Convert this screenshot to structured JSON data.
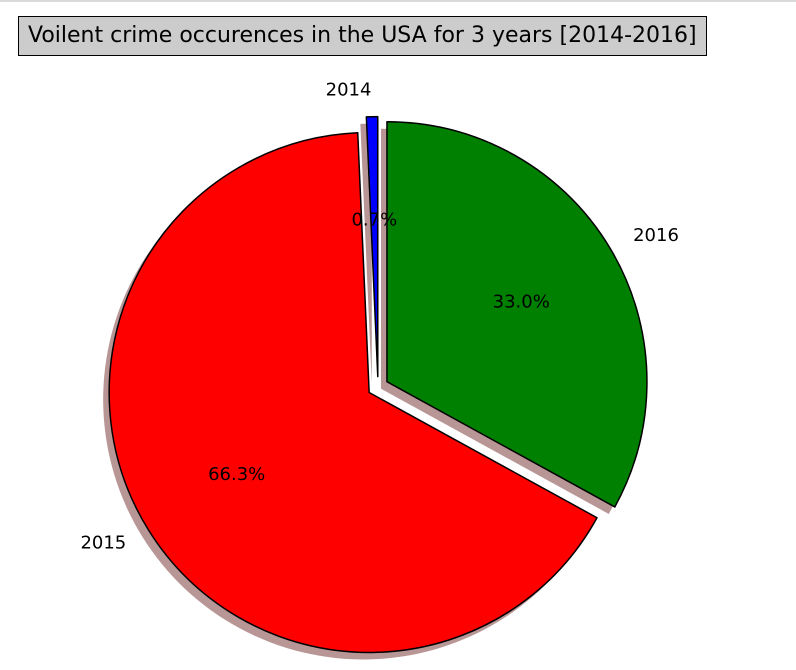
{
  "chart_data": {
    "type": "pie",
    "title": "Voilent crime occurences in the USA for 3 years [2014-2016]",
    "categories": [
      "2014",
      "2015",
      "2016"
    ],
    "values": [
      0.7,
      66.3,
      33.0
    ],
    "autopct_labels": [
      "0.7%",
      "66.3%",
      "33.0%"
    ],
    "colors": [
      "#0000ff",
      "#ff0000",
      "#008000"
    ],
    "explode": [
      0.04,
      0.04,
      0.04
    ],
    "start_angle_deg": 90,
    "shadow": true,
    "shadow_color": "#804040",
    "edge_color": "#000000"
  }
}
